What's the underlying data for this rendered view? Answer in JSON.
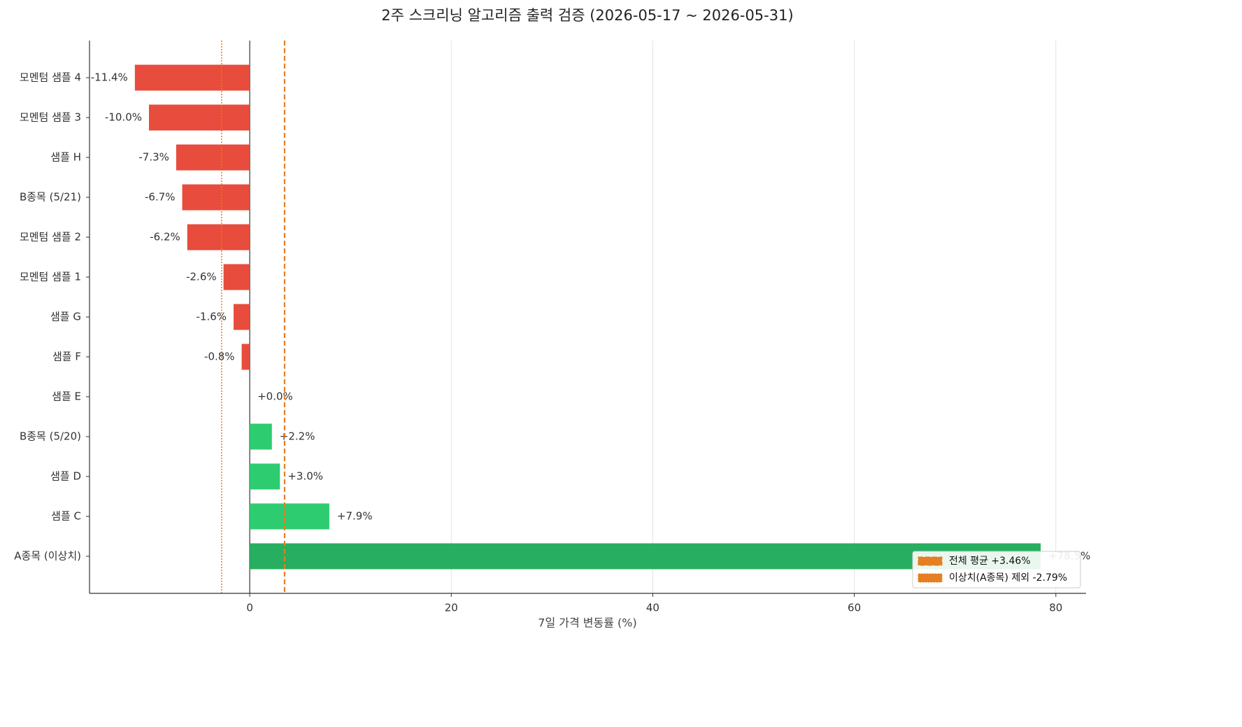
{
  "chart_data": {
    "type": "barh",
    "title": "2주 스크리닝 알고리즘 출력 검증 (2026-05-17 ~ 2026-05-31)",
    "xlabel": "7일 가격 변동률 (%)",
    "categories": [
      "모멘텀 샘플 4",
      "모멘텀 샘플 3",
      "샘플 H",
      "B종목 (5/21)",
      "모멘텀 샘플 2",
      "모멘텀 샘플 1",
      "샘플 G",
      "샘플 F",
      "샘플 E",
      "B종목 (5/20)",
      "샘플 D",
      "샘플 C",
      "A종목 (이상치)"
    ],
    "values": [
      -11.4,
      -10.0,
      -7.3,
      -6.7,
      -6.2,
      -2.6,
      -1.6,
      -0.8,
      0.0,
      2.2,
      3.0,
      7.9,
      78.5
    ],
    "value_labels": [
      "-11.4%",
      "-10.0%",
      "-7.3%",
      "-6.7%",
      "-6.2%",
      "-2.6%",
      "-1.6%",
      "-0.8%",
      "+0.0%",
      "+2.2%",
      "+3.0%",
      "+7.9%",
      "+78.5%"
    ],
    "colors": [
      "#e74c3c",
      "#e74c3c",
      "#e74c3c",
      "#e74c3c",
      "#e74c3c",
      "#e74c3c",
      "#e74c3c",
      "#e74c3c",
      "#2ecc71",
      "#2ecc71",
      "#2ecc71",
      "#2ecc71",
      "#27ae60"
    ],
    "xlim": [
      -15.9,
      83
    ],
    "xticks": [
      0,
      20,
      40,
      60,
      80
    ],
    "grid": true,
    "reference_lines": [
      {
        "value": 3.46,
        "label": "전체 평균 +3.46%",
        "style": "dashed",
        "color": "#e67e22"
      },
      {
        "value": -2.79,
        "label": "이상치(A종목) 제외 -2.79%",
        "style": "dotted",
        "color": "#e67e22"
      }
    ],
    "legend": "lower right"
  }
}
